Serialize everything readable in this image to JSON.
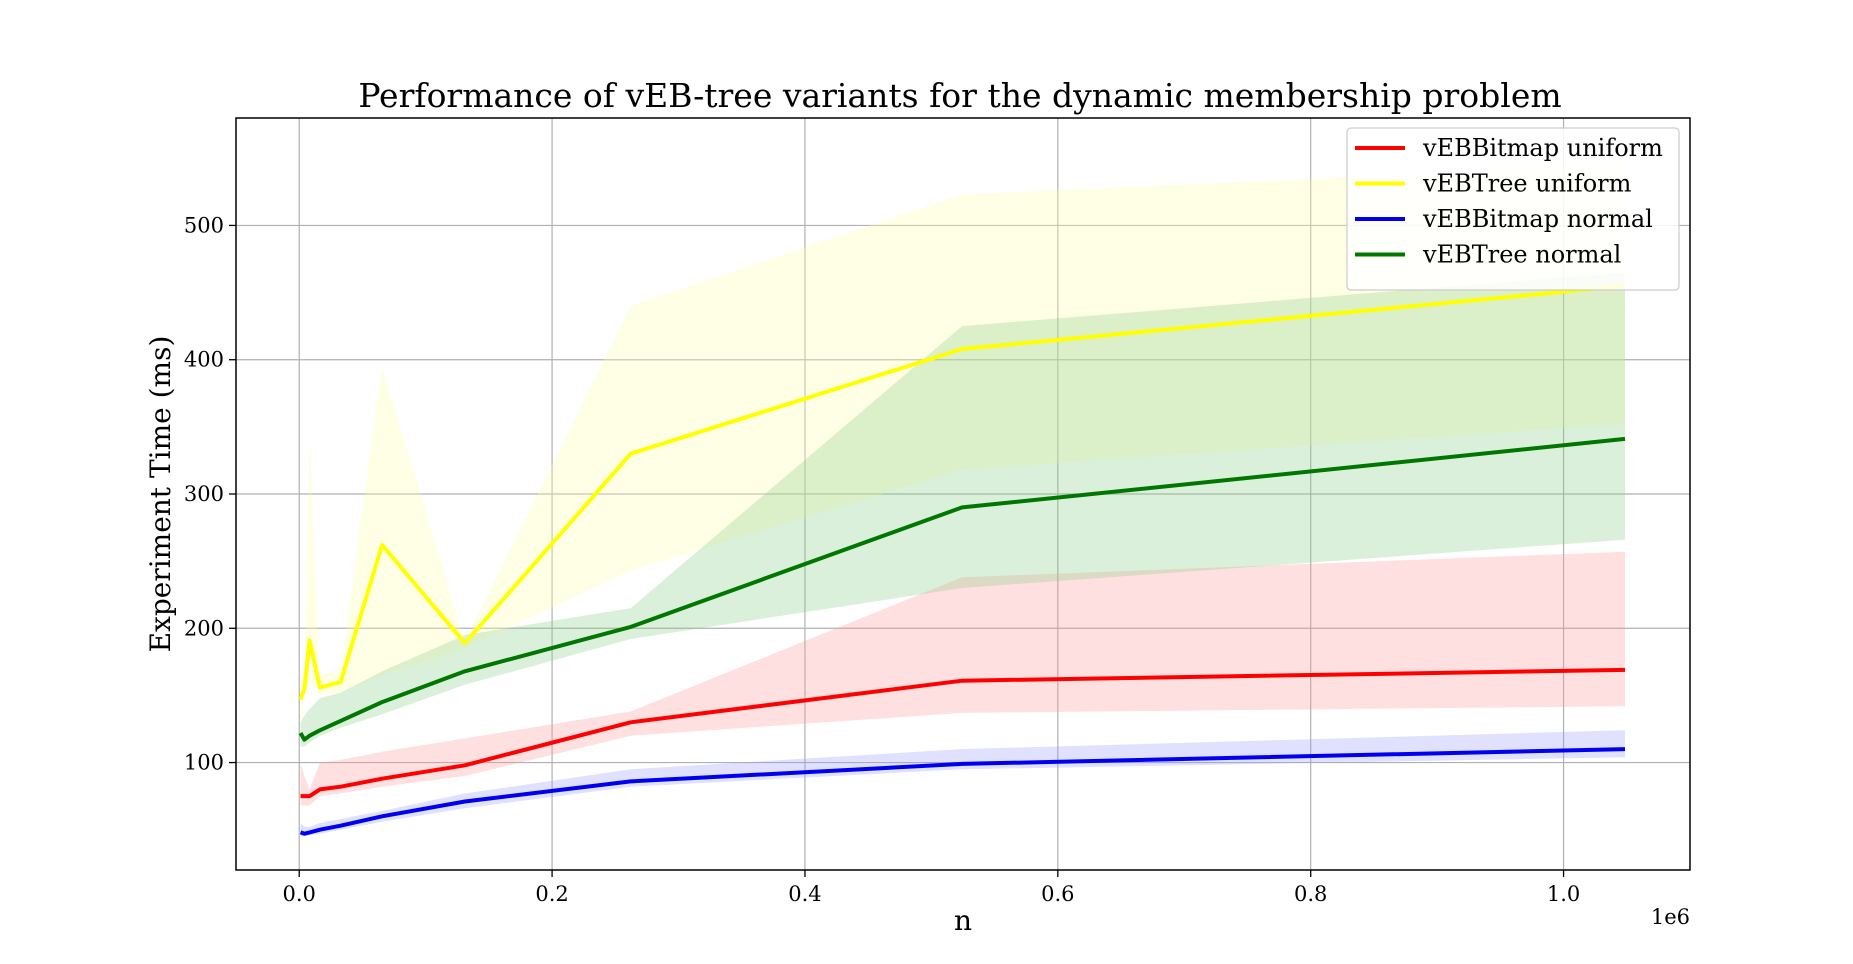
{
  "chart_data": {
    "type": "line",
    "title": "Performance of vEB-tree variants for the dynamic membership problem",
    "xlabel": "n",
    "ylabel": "Experiment Time (ms)",
    "x_offset_label": "1e6",
    "xlim": [
      -50000,
      1100000
    ],
    "ylim": [
      20,
      580
    ],
    "x_ticks": [
      0,
      200000,
      400000,
      600000,
      800000,
      1000000
    ],
    "x_tick_labels": [
      "0.0",
      "0.2",
      "0.4",
      "0.6",
      "0.8",
      "1.0"
    ],
    "y_ticks": [
      100,
      200,
      300,
      400,
      500
    ],
    "y_tick_labels": [
      "100",
      "200",
      "300",
      "400",
      "500"
    ],
    "grid": true,
    "legend_position": "top-right",
    "x": [
      1024,
      4096,
      8192,
      16384,
      32768,
      65536,
      131072,
      262144,
      524288,
      1048576
    ],
    "series": [
      {
        "name": "vEBBitmap uniform",
        "color": "#ff0000",
        "fill_color": "#ff9999",
        "values": [
          75,
          75,
          75,
          80,
          82,
          88,
          98,
          130,
          161,
          169
        ],
        "lower": [
          68,
          68,
          68,
          75,
          77,
          82,
          90,
          120,
          137,
          142
        ],
        "upper": [
          100,
          90,
          80,
          100,
          102,
          108,
          118,
          138,
          238,
          257
        ]
      },
      {
        "name": "vEBTree uniform",
        "color": "#ffff00",
        "fill_color": "#ffffaa",
        "values": [
          147,
          155,
          191,
          156,
          160,
          262,
          189,
          330,
          408,
          455
        ],
        "lower": [
          130,
          150,
          160,
          150,
          152,
          165,
          185,
          243,
          318,
          352
        ],
        "upper": [
          165,
          160,
          345,
          165,
          170,
          395,
          190,
          440,
          523,
          545
        ]
      },
      {
        "name": "vEBBitmap normal",
        "color": "#0000ee",
        "fill_color": "#9999ff",
        "values": [
          48,
          47,
          48,
          50,
          53,
          60,
          71,
          86,
          99,
          110
        ],
        "lower": [
          45,
          45,
          46,
          47,
          50,
          56,
          66,
          82,
          95,
          104
        ],
        "upper": [
          55,
          52,
          52,
          55,
          58,
          64,
          77,
          95,
          110,
          124
        ]
      },
      {
        "name": "vEBTree normal",
        "color": "#007700",
        "fill_color": "#88cc88",
        "values": [
          122,
          117,
          120,
          124,
          131,
          145,
          168,
          201,
          290,
          341
        ],
        "lower": [
          112,
          112,
          115,
          120,
          126,
          136,
          158,
          192,
          230,
          266
        ],
        "upper": [
          130,
          135,
          140,
          148,
          152,
          168,
          195,
          215,
          425,
          465
        ]
      }
    ]
  }
}
